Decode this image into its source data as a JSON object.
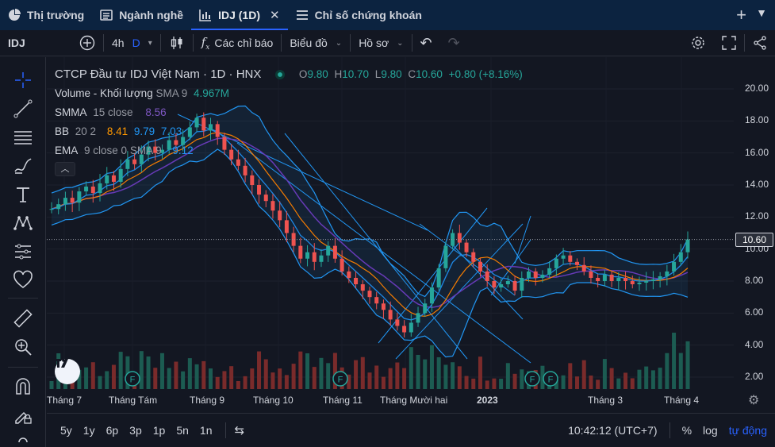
{
  "tabs": [
    {
      "label": "Thị trường",
      "icon": "pie-chart-icon",
      "active": false
    },
    {
      "label": "Ngành nghề",
      "icon": "list-icon",
      "active": false
    },
    {
      "label": "IDJ (1D)",
      "icon": "chart-icon",
      "active": true
    },
    {
      "label": "Chỉ số chứng khoán",
      "icon": "hamburger-icon",
      "active": false
    }
  ],
  "toolbar": {
    "symbol": "IDJ",
    "interval": "4h",
    "interval_active": "D",
    "indicators_label": "Các chỉ báo",
    "chart_type_label": "Biểu đồ",
    "profile_label": "Hồ sơ"
  },
  "legend": {
    "title": "CTCP Đầu tư IDJ Việt Nam · 1D · HNX",
    "o_label": "O",
    "o": "9.80",
    "h_label": "H",
    "h": "10.70",
    "l_label": "L",
    "l": "9.80",
    "c_label": "C",
    "c": "10.60",
    "change": "+0.80 (+8.16%)",
    "volume_label": "Volume - Khối lượng",
    "volume_sma": "SMA 9",
    "volume_value": "4.967M",
    "smma_label": "SMMA",
    "smma_params": "15 close",
    "smma_value": "8.56",
    "bb_label": "BB",
    "bb_params": "20 2",
    "bb_mid": "8.41",
    "bb_up": "9.79",
    "bb_low": "7.03",
    "ema_label": "EMA",
    "ema_params": "9 close 0 SMA 9",
    "ema_value": "9.12"
  },
  "price_axis": {
    "ticks": [
      "20.00",
      "18.00",
      "16.00",
      "14.00",
      "12.00",
      "10.00",
      "8.00",
      "6.00",
      "4.00",
      "2.00"
    ],
    "last_price": "10.60"
  },
  "time_axis": [
    "Tháng 7",
    "Tháng Tám",
    "Tháng 9",
    "Tháng 10",
    "Tháng 11",
    "Tháng Mười hai",
    "2023",
    "Tháng 3",
    "Tháng 4"
  ],
  "bottom": {
    "ranges": [
      "5y",
      "1y",
      "6p",
      "3p",
      "1p",
      "5n",
      "1n"
    ],
    "time": "10:42:12 (UTC+7)",
    "percent": "%",
    "log": "log",
    "auto": "tự động"
  },
  "events": [
    "F",
    "F",
    "F",
    "F"
  ],
  "colors": {
    "up": "#26a69a",
    "down": "#ef5350",
    "bb": "#2196f3",
    "smma": "#673ab7",
    "ema": "#ff9800",
    "bb_mid": "#f57c00",
    "accent": "#2962ff"
  },
  "chart_data": {
    "type": "candlestick",
    "series_close": [
      12.5,
      12.8,
      13.2,
      12.9,
      13.6,
      13.9,
      13.5,
      14.1,
      14.6,
      14.2,
      15.0,
      15.6,
      15.3,
      15.9,
      16.4,
      16.0,
      16.2,
      16.8,
      16.5,
      17.0,
      17.6,
      18.2,
      17.4,
      17.8,
      17.0,
      16.2,
      15.6,
      15.2,
      14.6,
      14.0,
      13.4,
      13.0,
      12.4,
      11.8,
      11.0,
      10.2,
      9.4,
      9.8,
      9.2,
      9.6,
      10.2,
      9.4,
      8.6,
      8.2,
      7.8,
      7.4,
      7.0,
      6.6,
      6.2,
      5.6,
      5.2,
      4.8,
      5.4,
      6.0,
      6.6,
      7.6,
      8.8,
      10.2,
      11.0,
      10.4,
      9.8,
      9.2,
      8.6,
      8.0,
      7.6,
      7.8,
      8.0,
      7.4,
      8.2,
      8.6,
      8.2,
      8.4,
      8.8,
      9.4,
      9.6,
      9.2,
      9.0,
      8.6,
      8.2,
      8.0,
      8.4,
      8.0,
      8.2,
      8.0,
      7.8,
      7.9,
      8.0,
      8.1,
      8.3,
      8.6,
      9.2,
      9.8,
      10.6
    ],
    "price_range": [
      1,
      21
    ],
    "last": 10.6,
    "change": 0.8,
    "change_pct": 8.16
  }
}
